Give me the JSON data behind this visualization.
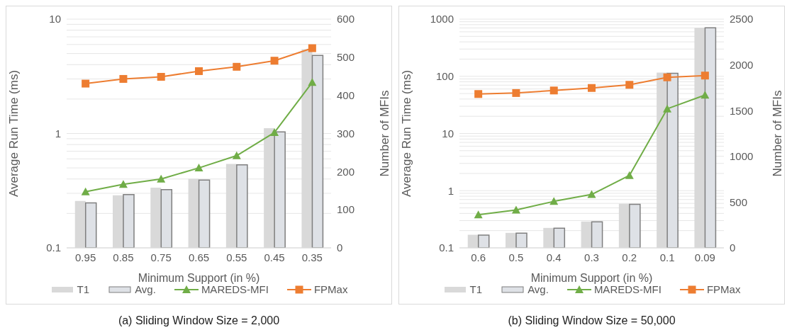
{
  "chart_data": [
    {
      "type": "bar",
      "title": "(a) Sliding Window Size = 2,000",
      "xlabel": "Minimum Support (in %)",
      "ylabel": "Average Run Time (ms)",
      "y2label": "Number of MFIs",
      "categories": [
        "0.95",
        "0.85",
        "0.75",
        "0.65",
        "0.55",
        "0.45",
        "0.35"
      ],
      "series": [
        {
          "name": "T1",
          "axis": "y2",
          "color": "#d9d9d9",
          "values": [
            123,
            138,
            158,
            181,
            220,
            314,
            521
          ]
        },
        {
          "name": "Avg.",
          "axis": "y2",
          "color": "#dee1e6",
          "values": [
            118,
            140,
            153,
            178,
            218,
            304,
            505
          ]
        },
        {
          "name": "MAREDS-MFI",
          "type": "line",
          "axis": "y",
          "color": "#70ad47",
          "marker": "triangle",
          "values": [
            0.31,
            0.36,
            0.4,
            0.5,
            0.64,
            1.02,
            2.8
          ]
        },
        {
          "name": "FPMax",
          "type": "line",
          "axis": "y",
          "color": "#ed7d31",
          "marker": "square",
          "values": [
            2.73,
            3.0,
            3.13,
            3.51,
            3.83,
            4.33,
            5.57
          ]
        }
      ],
      "log": "y",
      "ylim": [
        0.1,
        10
      ],
      "yticks": [
        0.1,
        {
          "value": 0.2,
          "label": null
        },
        {
          "value": 0.3,
          "label": null
        },
        {
          "value": 0.4,
          "label": null
        },
        {
          "value": 0.5,
          "label": null
        },
        {
          "value": 0.6,
          "label": null
        },
        {
          "value": 0.7,
          "label": null
        },
        {
          "value": 0.8,
          "label": null
        },
        {
          "value": 0.9,
          "label": null
        },
        1,
        {
          "value": 2,
          "label": null
        },
        {
          "value": 3,
          "label": null
        },
        {
          "value": 4,
          "label": null
        },
        {
          "value": 5,
          "label": null
        },
        {
          "value": 6,
          "label": null
        },
        {
          "value": 7,
          "label": null
        },
        {
          "value": 8,
          "label": null
        },
        {
          "value": 9,
          "label": null
        },
        10
      ],
      "y2lim": [
        0,
        600
      ],
      "y2ticks": [
        0,
        100,
        200,
        300,
        400,
        500,
        600
      ],
      "grid": "y",
      "legend": "bottom"
    },
    {
      "type": "bar",
      "title": "(b) Sliding Window Size = 50,000",
      "xlabel": "Minimum Support (in %)",
      "ylabel": "Average Run Time (ms)",
      "y2label": "Number of MFIs",
      "categories": [
        "0.6",
        "0.5",
        "0.4",
        "0.3",
        "0.2",
        "0.1",
        "0.09"
      ],
      "series": [
        {
          "name": "T1",
          "axis": "y2",
          "color": "#d9d9d9",
          "values": [
            143,
            164,
            218,
            288,
            482,
            1916,
            2406
          ]
        },
        {
          "name": "Avg.",
          "axis": "y2",
          "color": "#dee1e6",
          "values": [
            140,
            161,
            215,
            285,
            476,
            1908,
            2406
          ]
        },
        {
          "name": "MAREDS-MFI",
          "type": "line",
          "axis": "y",
          "color": "#70ad47",
          "marker": "triangle",
          "values": [
            0.38,
            0.46,
            0.65,
            0.86,
            1.85,
            27,
            47
          ]
        },
        {
          "name": "FPMax",
          "type": "line",
          "axis": "y",
          "color": "#ed7d31",
          "marker": "square",
          "values": [
            49,
            51,
            56.5,
            62.5,
            71,
            96,
            103
          ]
        }
      ],
      "log": "y",
      "ylim": [
        0.1,
        1000
      ],
      "yticks": [
        0.1,
        {
          "value": 0.2,
          "label": null
        },
        {
          "value": 0.3,
          "label": null
        },
        {
          "value": 0.4,
          "label": null
        },
        {
          "value": 0.5,
          "label": null
        },
        {
          "value": 0.6,
          "label": null
        },
        {
          "value": 0.7,
          "label": null
        },
        {
          "value": 0.8,
          "label": null
        },
        {
          "value": 0.9,
          "label": null
        },
        1,
        {
          "value": 2,
          "label": null
        },
        {
          "value": 3,
          "label": null
        },
        {
          "value": 4,
          "label": null
        },
        {
          "value": 5,
          "label": null
        },
        {
          "value": 6,
          "label": null
        },
        {
          "value": 7,
          "label": null
        },
        {
          "value": 8,
          "label": null
        },
        {
          "value": 9,
          "label": null
        },
        10,
        {
          "value": 20,
          "label": null
        },
        {
          "value": 30,
          "label": null
        },
        {
          "value": 40,
          "label": null
        },
        {
          "value": 50,
          "label": null
        },
        {
          "value": 60,
          "label": null
        },
        {
          "value": 70,
          "label": null
        },
        {
          "value": 80,
          "label": null
        },
        {
          "value": 90,
          "label": null
        },
        100,
        {
          "value": 200,
          "label": null
        },
        {
          "value": 300,
          "label": null
        },
        {
          "value": 400,
          "label": null
        },
        {
          "value": 500,
          "label": null
        },
        {
          "value": 600,
          "label": null
        },
        {
          "value": 700,
          "label": null
        },
        {
          "value": 800,
          "label": null
        },
        {
          "value": 900,
          "label": null
        },
        1000
      ],
      "y2lim": [
        0,
        2500
      ],
      "y2ticks": [
        0,
        500,
        1000,
        1500,
        2000,
        2500
      ],
      "grid": "y",
      "legend": "bottom"
    }
  ]
}
